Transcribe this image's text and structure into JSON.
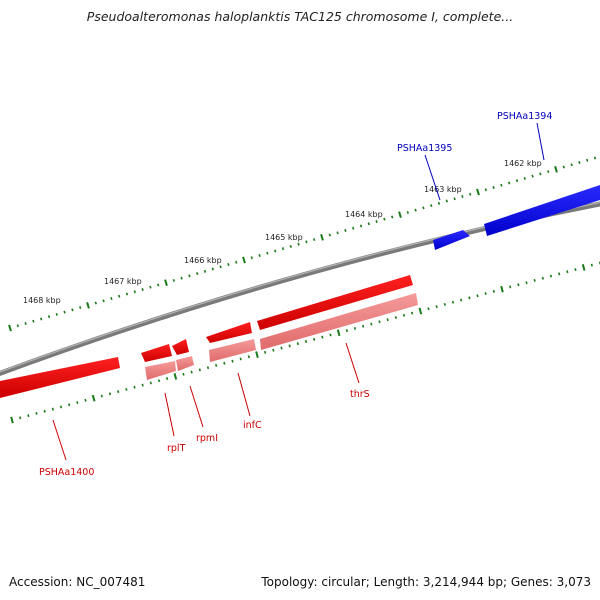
{
  "title": "Pseudoalteromonas haloplanktis TAC125 chromosome I, complete...",
  "footer": {
    "accession": "Accession: NC_007481",
    "summary": "Topology: circular; Length: 3,214,944 bp; Genes: 3,073"
  },
  "colors": {
    "forward_gene": "#0000ee",
    "reverse_gene": "#ee0000",
    "reverse_gene_shade": "#f08080",
    "backbone": "#808080",
    "tick": "#1a7a1a",
    "forward_label": "#0000bb",
    "reverse_label": "#cc0000"
  },
  "scale_ticks": [
    "1462 kbp",
    "1463 kbp",
    "1464 kbp",
    "1465 kbp",
    "1466 kbp",
    "1467 kbp",
    "1468 kbp"
  ],
  "genes": [
    {
      "name": "PSHAa1394",
      "strand": "forward"
    },
    {
      "name": "PSHAa1395",
      "strand": "forward"
    },
    {
      "name": "thrS",
      "strand": "reverse"
    },
    {
      "name": "infC",
      "strand": "reverse"
    },
    {
      "name": "rpmI",
      "strand": "reverse"
    },
    {
      "name": "rplT",
      "strand": "reverse"
    },
    {
      "name": "PSHAa1400",
      "strand": "reverse"
    }
  ]
}
